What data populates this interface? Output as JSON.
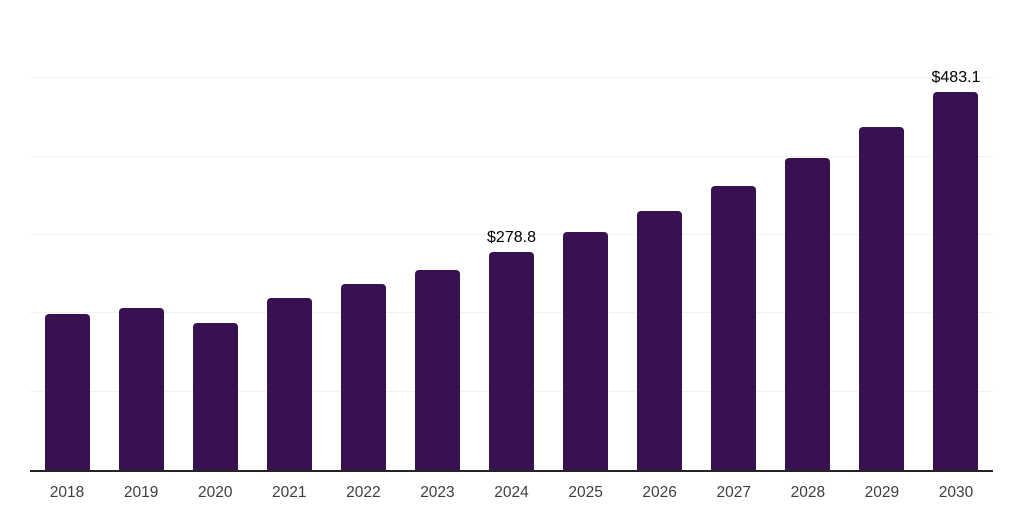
{
  "chart_data": {
    "type": "bar",
    "title": "",
    "xlabel": "",
    "ylabel": "",
    "categories": [
      "2018",
      "2019",
      "2020",
      "2021",
      "2022",
      "2023",
      "2024",
      "2025",
      "2026",
      "2027",
      "2028",
      "2029",
      "2030"
    ],
    "values": [
      199.3,
      206.4,
      187.7,
      219.2,
      237.1,
      254.9,
      278.8,
      303.4,
      330.6,
      362.6,
      397.9,
      437.5,
      483.1
    ],
    "data_labels": {
      "2024": "$278.8",
      "2030": "$483.1"
    },
    "ylim": [
      0,
      600
    ],
    "gridline_step": 100,
    "grid": "horizontal-only",
    "legend": "none",
    "y_axis_tick_labels_visible": false,
    "colors": {
      "bar": "#371150",
      "gridline": "#f1f1f3",
      "axis_line": "#242424",
      "tick_label": "#3e3e3e",
      "data_label": "#000000",
      "background": "#ffffff"
    }
  }
}
